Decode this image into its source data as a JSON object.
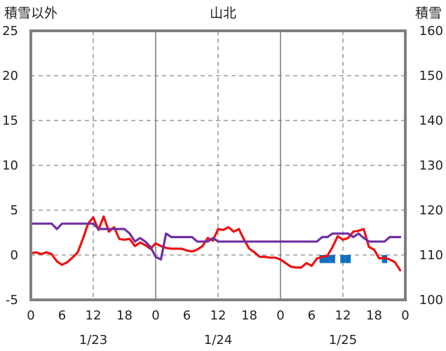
{
  "chart_data": {
    "type": "line",
    "title": "山北",
    "left_axis_label": "積雪以外",
    "right_axis_label": "積雪",
    "left_ylim": [
      -5,
      25
    ],
    "left_yticks": [
      -5,
      0,
      5,
      10,
      15,
      20,
      25
    ],
    "right_ylim": [
      100,
      160
    ],
    "right_yticks": [
      100,
      110,
      120,
      130,
      140,
      150,
      160
    ],
    "xlim_hours": [
      0,
      72
    ],
    "xtick_labels": [
      "0",
      "6",
      "12",
      "18",
      "0",
      "6",
      "12",
      "18",
      "0",
      "6",
      "12",
      "18",
      "0"
    ],
    "date_labels": [
      "1/23",
      "1/24",
      "1/25"
    ],
    "grid": "dashed",
    "colors": {
      "red": "#ee1111",
      "purple": "#7030a0",
      "blue": "#1070c0",
      "frame": "#808080",
      "grid": "#888888"
    },
    "series": [
      {
        "axis": "left",
        "color": "#ee1111",
        "points": [
          [
            0,
            0.2
          ],
          [
            1,
            0.3
          ],
          [
            2,
            0.1
          ],
          [
            3,
            0.3
          ],
          [
            4,
            0.1
          ],
          [
            5,
            -0.7
          ],
          [
            6,
            -1.1
          ],
          [
            7,
            -0.8
          ],
          [
            8,
            -0.3
          ],
          [
            9,
            0.3
          ],
          [
            10,
            1.8
          ],
          [
            11,
            3.5
          ],
          [
            12,
            4.2
          ],
          [
            13,
            2.8
          ],
          [
            14,
            4.3
          ],
          [
            15,
            2.6
          ],
          [
            16,
            3.1
          ],
          [
            17,
            1.8
          ],
          [
            18,
            1.7
          ],
          [
            19,
            1.8
          ],
          [
            20,
            1.0
          ],
          [
            21,
            1.4
          ],
          [
            22,
            1.1
          ],
          [
            23,
            0.7
          ],
          [
            24,
            1.3
          ],
          [
            25,
            1.0
          ],
          [
            26,
            0.8
          ],
          [
            27,
            0.7
          ],
          [
            28,
            0.7
          ],
          [
            29,
            0.7
          ],
          [
            30,
            0.5
          ],
          [
            31,
            0.4
          ],
          [
            32,
            0.6
          ],
          [
            33,
            1.0
          ],
          [
            34,
            1.9
          ],
          [
            35,
            1.6
          ],
          [
            36,
            2.9
          ],
          [
            37,
            2.8
          ],
          [
            38,
            3.1
          ],
          [
            39,
            2.6
          ],
          [
            40,
            2.9
          ],
          [
            41,
            1.7
          ],
          [
            42,
            0.7
          ],
          [
            43,
            0.3
          ],
          [
            44,
            -0.2
          ],
          [
            45,
            -0.2
          ],
          [
            46,
            -0.3
          ],
          [
            47,
            -0.3
          ],
          [
            48,
            -0.5
          ],
          [
            49,
            -0.9
          ],
          [
            50,
            -1.3
          ],
          [
            51,
            -1.4
          ],
          [
            52,
            -1.4
          ],
          [
            53,
            -0.9
          ],
          [
            54,
            -1.2
          ],
          [
            55,
            -0.4
          ],
          [
            56,
            -0.2
          ],
          [
            57,
            -0.1
          ],
          [
            58,
            0.9
          ],
          [
            59,
            2.1
          ],
          [
            60,
            1.7
          ],
          [
            61,
            1.9
          ],
          [
            62,
            2.6
          ],
          [
            63,
            2.7
          ],
          [
            64,
            2.9
          ],
          [
            65,
            0.9
          ],
          [
            66,
            0.6
          ],
          [
            67,
            -0.4
          ],
          [
            68,
            -0.3
          ],
          [
            69,
            -0.5
          ],
          [
            70,
            -0.8
          ],
          [
            71,
            -1.7
          ]
        ]
      },
      {
        "axis": "left",
        "color": "#7030a0",
        "points": [
          [
            0,
            3.5
          ],
          [
            4,
            3.5
          ],
          [
            5,
            2.9
          ],
          [
            6,
            3.5
          ],
          [
            12,
            3.5
          ],
          [
            13,
            2.9
          ],
          [
            18,
            2.9
          ],
          [
            19,
            2.4
          ],
          [
            20,
            1.5
          ],
          [
            21,
            1.9
          ],
          [
            22,
            1.5
          ],
          [
            23,
            0.9
          ],
          [
            24,
            -0.2
          ],
          [
            25,
            -0.5
          ],
          [
            26,
            2.4
          ],
          [
            27,
            2.0
          ],
          [
            31,
            2.0
          ],
          [
            32,
            1.5
          ],
          [
            34,
            1.5
          ],
          [
            35,
            1.9
          ],
          [
            36,
            1.5
          ],
          [
            55,
            1.5
          ],
          [
            56,
            2.0
          ],
          [
            57,
            2.0
          ],
          [
            58,
            2.4
          ],
          [
            61,
            2.4
          ],
          [
            62,
            2.0
          ],
          [
            63,
            2.4
          ],
          [
            64,
            1.9
          ],
          [
            65,
            1.5
          ],
          [
            68,
            1.5
          ],
          [
            69,
            2.0
          ],
          [
            71,
            2.0
          ]
        ]
      }
    ],
    "bars": {
      "axis": "left",
      "color": "#1070c0",
      "baseline": 0,
      "values": [
        [
          56,
          -0.9
        ],
        [
          57,
          -0.9
        ],
        [
          58,
          -0.9
        ],
        [
          60,
          -0.9
        ],
        [
          61,
          -0.9
        ],
        [
          68,
          -0.9
        ]
      ]
    }
  }
}
